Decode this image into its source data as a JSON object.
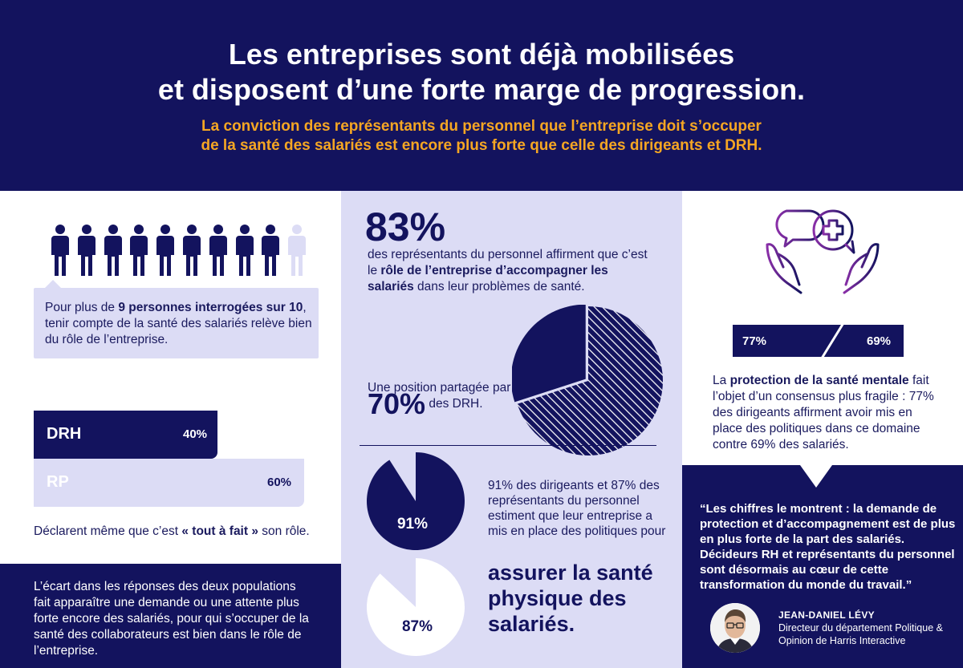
{
  "header": {
    "title_line1": "Les entreprises sont déjà mobilisées",
    "title_line2": "et disposent d’une forte marge de progression.",
    "subtitle_line1": "La conviction des représentants du personnel que l’entreprise doit s’occuper",
    "subtitle_line2": "de la santé des salariés est encore plus forte que celle des dirigeants et DRH."
  },
  "left": {
    "people_total": 10,
    "people_highlighted": 9,
    "callout": {
      "pre": "Pour plus de ",
      "bold": "9 personnes interrogées sur 10",
      "post": ", tenir compte de la santé des salariés relève bien du rôle de l’entreprise."
    },
    "bars": [
      {
        "label": "DRH",
        "value": "40%",
        "pct": 40
      },
      {
        "label": "RP",
        "value": "60%",
        "pct": 60
      }
    ],
    "declarent": {
      "pre": "Déclarent même que c’est ",
      "bold": "« tout à fait »",
      "post": " son rôle."
    },
    "bottom_text": "L’écart dans les réponses des deux populations fait apparaître une demande ou une attente plus forte encore des salariés, pour qui s’occuper de la santé des collaborateurs est bien dans le rôle de l’entreprise."
  },
  "center": {
    "big_value": "83%",
    "text": {
      "pre": "des représentants du personnel affirment que c’est le ",
      "bold": "rôle de l’entreprise d’accompagner les salariés",
      "post": " dans leur problèmes de santé."
    },
    "pie1_pct": 70,
    "shared_pre": "Une position partagée par ",
    "shared_big": "70%",
    "shared_post": " des DRH.",
    "pie2_value": "91%",
    "pie2_pct": 91,
    "pie3_value": "87%",
    "pie3_pct": 87,
    "text91": "91% des dirigeants et 87% des représentants du personnel estiment que leur entreprise a mis en place des politiques pour",
    "assurer": "assurer la santé physique des salariés."
  },
  "right": {
    "v77": "77%",
    "v69": "69%",
    "mental": {
      "pre": "La ",
      "bold": "protection de la santé mentale",
      "post": " fait l’objet d’un consensus plus fragile : 77% des dirigeants affirment avoir mis en place des politiques dans ce domaine contre 69% des salariés."
    },
    "quote": "“Les chiffres le montrent : la demande de protection et d’accompagnement est de plus en plus forte de la part des salariés. Décideurs RH et représentants du personnel sont désormais au cœur de cette transformation du monde du travail.”",
    "person_name": "JEAN-DANIEL LÉVY",
    "person_title": "Directeur du département Politique & Opinion de Harris Interactive"
  },
  "colors": {
    "navy": "#13135e",
    "lavender": "#dcdcf5",
    "orange": "#f5a623",
    "purple": "#6b2c91"
  }
}
